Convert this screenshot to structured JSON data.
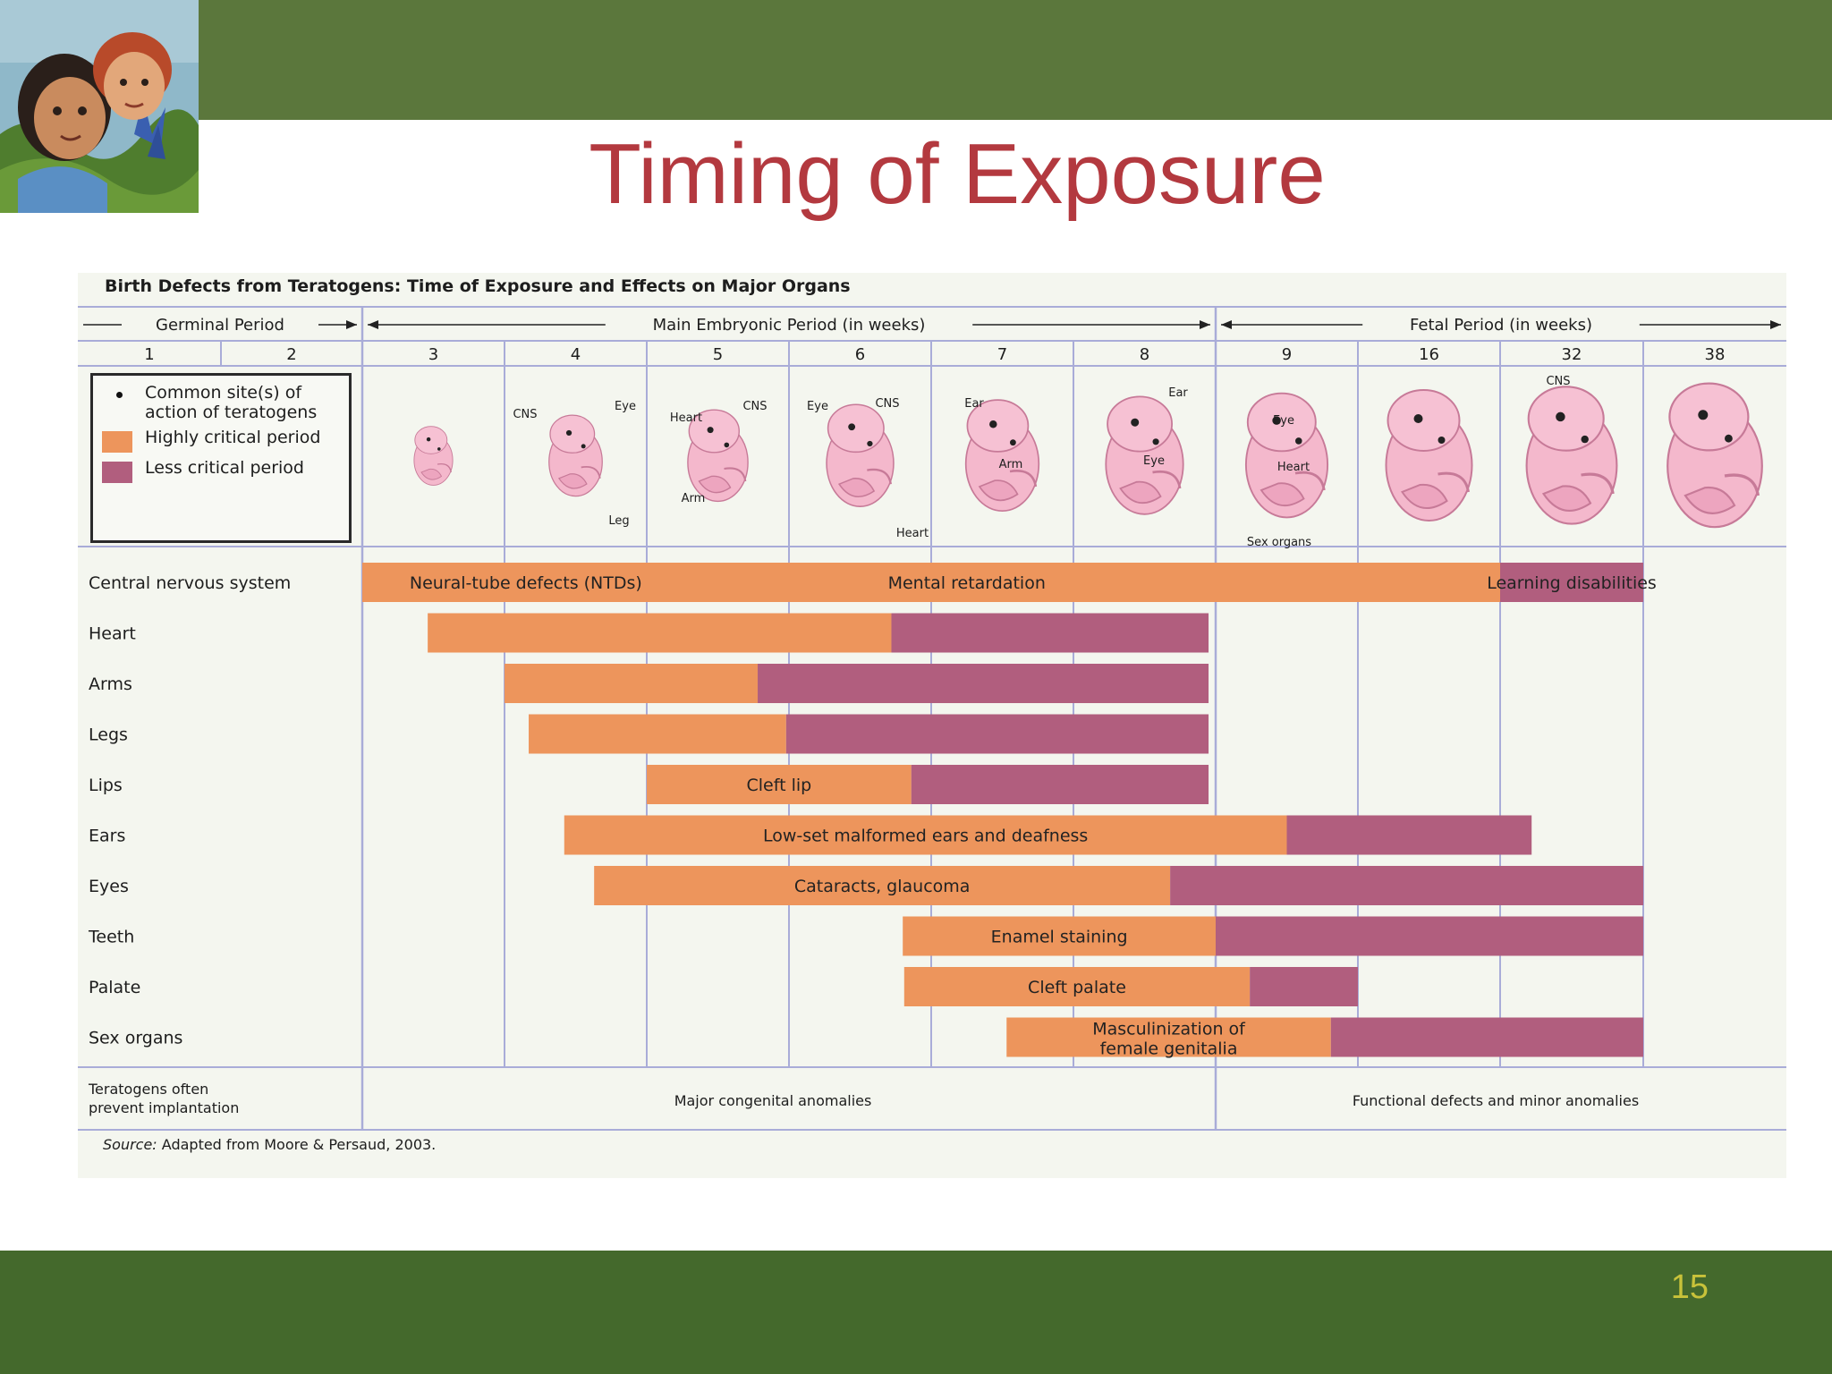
{
  "slide": {
    "title": "Timing of Exposure",
    "page_number": "15"
  },
  "colors": {
    "header_bar": "#5b773c",
    "footer_bar": "#44692c",
    "title": "#b3393f",
    "page_number": "#c8c23a",
    "highly_critical": "#ed955c",
    "less_critical": "#b15e7e",
    "grid": "#a9acd8"
  },
  "icons": {
    "header_art": "children-illustration",
    "embryo": "embryo-illustration"
  },
  "chart_data": {
    "type": "bar",
    "orientation": "horizontal-timeline",
    "title": "Birth Defects from Teratogens: Time of Exposure and Effects on Major Organs",
    "periods": [
      {
        "label": "Germinal Period",
        "from": "1",
        "to": "2"
      },
      {
        "label": "Main Embryonic Period (in weeks)",
        "from": "3",
        "to": "8"
      },
      {
        "label": "Fetal Period (in weeks)",
        "from": "9",
        "to": "38"
      }
    ],
    "weeks": [
      "1",
      "2",
      "3",
      "4",
      "5",
      "6",
      "7",
      "8",
      "9",
      "16",
      "32",
      "38"
    ],
    "embryo_labels": [
      {
        "text": "CNS",
        "week": "3"
      },
      {
        "text": "Eye",
        "week": "4"
      },
      {
        "text": "Heart",
        "week": "4"
      },
      {
        "text": "Leg",
        "week": "4"
      },
      {
        "text": "Arm",
        "week": "4"
      },
      {
        "text": "CNS",
        "week": "5"
      },
      {
        "text": "Eye",
        "week": "5"
      },
      {
        "text": "CNS",
        "week": "6"
      },
      {
        "text": "Ear",
        "week": "6"
      },
      {
        "text": "Arm",
        "week": "6"
      },
      {
        "text": "Heart",
        "week": "6"
      },
      {
        "text": "Ear",
        "week": "8"
      },
      {
        "text": "Eye",
        "week": "8"
      },
      {
        "text": "Eye",
        "week": "8"
      },
      {
        "text": "Heart",
        "week": "8"
      },
      {
        "text": "Sex organs",
        "week": "8"
      },
      {
        "text": "CNS",
        "week": "16"
      }
    ],
    "legend": {
      "site": "Common site(s) of action of teratogens",
      "highly": "Highly critical period",
      "less": "Less critical period"
    },
    "rows": [
      {
        "organ": "Central nervous system",
        "segments": [
          {
            "from": 2.0,
            "to": 10.0,
            "level": "highly",
            "label": ""
          },
          {
            "from": 10.0,
            "to": 11.0,
            "level": "less",
            "label": "Learning disabilities"
          }
        ],
        "labels": [
          {
            "text": "Neural-tube defects (NTDs)",
            "at": 3.15
          },
          {
            "text": "Mental retardation",
            "at": 6.25
          }
        ]
      },
      {
        "organ": "Heart",
        "segments": [
          {
            "from": 2.46,
            "to": 5.72,
            "level": "highly",
            "label": ""
          },
          {
            "from": 5.72,
            "to": 7.95,
            "level": "less",
            "label": ""
          }
        ],
        "labels": []
      },
      {
        "organ": "Arms",
        "segments": [
          {
            "from": 3.0,
            "to": 4.78,
            "level": "highly",
            "label": ""
          },
          {
            "from": 4.78,
            "to": 7.95,
            "level": "less",
            "label": ""
          }
        ],
        "labels": []
      },
      {
        "organ": "Legs",
        "segments": [
          {
            "from": 3.17,
            "to": 4.98,
            "level": "highly",
            "label": ""
          },
          {
            "from": 4.98,
            "to": 7.95,
            "level": "less",
            "label": ""
          }
        ],
        "labels": []
      },
      {
        "organ": "Lips",
        "segments": [
          {
            "from": 4.0,
            "to": 5.86,
            "level": "highly",
            "label": "Cleft lip"
          },
          {
            "from": 5.86,
            "to": 7.95,
            "level": "less",
            "label": ""
          }
        ],
        "labels": []
      },
      {
        "organ": "Ears",
        "segments": [
          {
            "from": 3.42,
            "to": 8.5,
            "level": "highly",
            "label": "Low-set malformed ears and deafness"
          },
          {
            "from": 8.5,
            "to": 10.22,
            "level": "less",
            "label": ""
          }
        ],
        "labels": []
      },
      {
        "organ": "Eyes",
        "segments": [
          {
            "from": 3.63,
            "to": 7.68,
            "level": "highly",
            "label": "Cataracts, glaucoma"
          },
          {
            "from": 7.68,
            "to": 11.0,
            "level": "less",
            "label": ""
          }
        ],
        "labels": []
      },
      {
        "organ": "Teeth",
        "segments": [
          {
            "from": 5.8,
            "to": 8.0,
            "level": "highly",
            "label": "Enamel staining"
          },
          {
            "from": 8.0,
            "to": 11.0,
            "level": "less",
            "label": ""
          }
        ],
        "labels": []
      },
      {
        "organ": "Palate",
        "segments": [
          {
            "from": 5.81,
            "to": 8.24,
            "level": "highly",
            "label": "Cleft palate"
          },
          {
            "from": 8.24,
            "to": 9.0,
            "level": "less",
            "label": ""
          }
        ],
        "labels": []
      },
      {
        "organ": "Sex organs",
        "segments": [
          {
            "from": 6.53,
            "to": 8.81,
            "level": "highly",
            "label": "Masculinization of female genitalia"
          },
          {
            "from": 8.81,
            "to": 11.0,
            "level": "less",
            "label": ""
          }
        ],
        "labels": []
      }
    ],
    "bottom_row": {
      "germinal": "Teratogens often prevent implantation",
      "embryonic": "Major congenital anomalies",
      "fetal": "Functional defects and minor anomalies"
    },
    "source_label": "Source:",
    "source_text": "Adapted from Moore & Persaud, 2003."
  }
}
